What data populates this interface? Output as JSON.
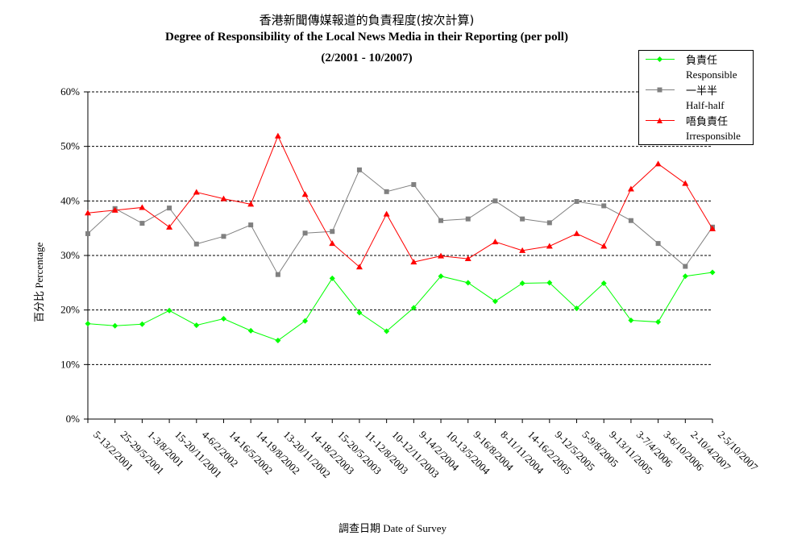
{
  "chart_data": {
    "type": "line",
    "title_zh": "香港新聞傳媒報道的負責程度(按次計算)",
    "title_en": "Degree of Responsibility of the Local News Media in their Reporting (per poll)",
    "subtitle": "(2/2001 - 10/2007)",
    "ylabel_zh": "百分比",
    "ylabel_en": "Percentage",
    "xlabel_zh": "調查日期",
    "xlabel_en": "Date of Survey",
    "ylim": [
      0,
      60
    ],
    "yticks": [
      "0%",
      "10%",
      "20%",
      "30%",
      "40%",
      "50%",
      "60%"
    ],
    "grid": true,
    "legend_position": "top-right",
    "categories": [
      "5-13/2/2001",
      "25-29/5/2001",
      "1-3/8/2001",
      "15-20/11/2001",
      "4-6/2/2002",
      "14-16/5/2002",
      "14-19/8/2002",
      "13-20/11/2002",
      "14-18/2/2003",
      "15-20/5/2003",
      "11-12/8/2003",
      "10-12/11/2003",
      "9-14/2/2004",
      "10-13/5/2004",
      "9-16/8/2004",
      "8-11/11/2004",
      "14-16/2/2005",
      "9-12/5/2005",
      "5-9/8/2005",
      "9-13/11/2005",
      "3-7/4/2006",
      "3-6/10/2006",
      "2-10/4/2007",
      "2-5/10/2007"
    ],
    "series": [
      {
        "name": "負責任",
        "name_en": "Responsible",
        "color": "#00ff00",
        "marker": "diamond",
        "values": [
          17.5,
          17.1,
          17.4,
          19.9,
          17.2,
          18.4,
          16.2,
          14.4,
          18.0,
          25.8,
          19.5,
          16.1,
          20.4,
          26.2,
          25.0,
          21.6,
          24.9,
          25.0,
          20.3,
          24.9,
          18.1,
          17.8,
          26.2,
          26.9
        ]
      },
      {
        "name": "一半半",
        "name_en": "Half-half",
        "color": "#808080",
        "marker": "square",
        "values": [
          34.0,
          38.6,
          35.9,
          38.7,
          32.1,
          33.5,
          35.6,
          26.5,
          34.1,
          34.4,
          45.7,
          41.7,
          43.0,
          36.4,
          36.7,
          40.0,
          36.7,
          36.0,
          39.9,
          39.1,
          36.4,
          32.2,
          28.0,
          35.2
        ]
      },
      {
        "name": "唔負責任",
        "name_en": "Irresponsible",
        "color": "#ff0000",
        "marker": "triangle",
        "values": [
          37.8,
          38.3,
          38.8,
          35.2,
          41.6,
          40.4,
          39.4,
          51.9,
          41.2,
          32.2,
          27.9,
          37.6,
          28.8,
          29.9,
          29.4,
          32.5,
          30.9,
          31.7,
          34.0,
          31.7,
          42.2,
          46.8,
          43.2,
          34.9
        ]
      }
    ]
  }
}
